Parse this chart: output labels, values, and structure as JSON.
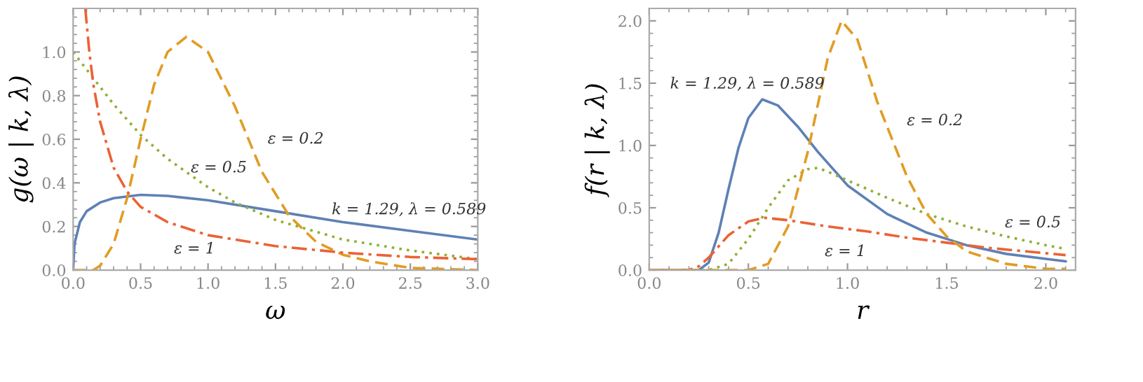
{
  "chart_data": [
    {
      "type": "line",
      "xlabel": "ω",
      "ylabel": "g(ω | k, λ)",
      "xlim": [
        0,
        3.0
      ],
      "ylim": [
        0,
        1.2
      ],
      "xticks": [
        {
          "value": 0,
          "label": "0.0"
        },
        0.5,
        {
          "value": 1,
          "label": "1.0"
        },
        1.5,
        {
          "value": 2,
          "label": "2.0"
        },
        2.5,
        {
          "value": 3,
          "label": "3.0"
        }
      ],
      "yticks": [
        {
          "value": 0,
          "label": "0.0"
        },
        0.2,
        0.4,
        0.6,
        0.8,
        {
          "value": 1,
          "label": "1.0"
        }
      ],
      "grid": false,
      "marker": "none",
      "series": [
        {
          "color": "#5e81b5",
          "line_style": "solid",
          "x": [
            0,
            0.01,
            0.05,
            0.1,
            0.2,
            0.3,
            0.5,
            0.7,
            1.0,
            1.5,
            2.0,
            2.5,
            3.0
          ],
          "values": [
            0,
            0.12,
            0.22,
            0.27,
            0.31,
            0.33,
            0.345,
            0.34,
            0.32,
            0.27,
            0.22,
            0.18,
            0.14
          ]
        },
        {
          "color": "#e19c24",
          "line_style": "dashed",
          "x": [
            0,
            0.15,
            0.2,
            0.3,
            0.4,
            0.5,
            0.6,
            0.7,
            0.84,
            1.0,
            1.2,
            1.4,
            1.6,
            1.8,
            2.0,
            2.2,
            2.5,
            3.0
          ],
          "values": [
            0,
            0,
            0.02,
            0.12,
            0.33,
            0.6,
            0.85,
            1.0,
            1.07,
            1.0,
            0.75,
            0.45,
            0.25,
            0.13,
            0.07,
            0.04,
            0.01,
            0
          ]
        },
        {
          "color": "#8fb032",
          "line_style": "dotted",
          "x": [
            0,
            0.1,
            0.2,
            0.3,
            0.5,
            0.7,
            1.0,
            1.2,
            1.5,
            2.0,
            2.5,
            3.0
          ],
          "values": [
            1.0,
            0.92,
            0.84,
            0.76,
            0.62,
            0.51,
            0.38,
            0.31,
            0.23,
            0.14,
            0.09,
            0.05
          ]
        },
        {
          "color": "#eb6235",
          "line_style": "dashdot",
          "x": [
            0.09,
            0.12,
            0.15,
            0.2,
            0.3,
            0.4,
            0.5,
            0.7,
            1.0,
            1.5,
            2.0,
            2.5,
            3.0
          ],
          "values": [
            1.2,
            1.0,
            0.85,
            0.68,
            0.47,
            0.36,
            0.29,
            0.22,
            0.16,
            0.11,
            0.08,
            0.06,
            0.05
          ]
        }
      ],
      "annotations": [
        "ε = 0.2",
        "ε = 0.5",
        "k = 1.29, λ = 0.589",
        "ε = 1"
      ]
    },
    {
      "type": "line",
      "xlabel": "r",
      "ylabel": "f(r | k, λ)",
      "xlim": [
        0,
        2.15
      ],
      "ylim": [
        0,
        2.1
      ],
      "xticks": [
        {
          "value": 0,
          "label": "0.0"
        },
        0.5,
        {
          "value": 1,
          "label": "1.0"
        },
        1.5,
        {
          "value": 2,
          "label": "2.0"
        }
      ],
      "yticks": [
        {
          "value": 0,
          "label": "0.0"
        },
        0.5,
        {
          "value": 1,
          "label": "1.0"
        },
        1.5,
        {
          "value": 2,
          "label": "2.0"
        }
      ],
      "grid": false,
      "marker": "none",
      "series": [
        {
          "color": "#5e81b5",
          "line_style": "solid",
          "x": [
            0,
            0.25,
            0.3,
            0.35,
            0.4,
            0.45,
            0.5,
            0.57,
            0.65,
            0.75,
            0.85,
            1.0,
            1.2,
            1.4,
            1.6,
            1.8,
            2.0,
            2.1
          ],
          "values": [
            0,
            0,
            0.06,
            0.3,
            0.65,
            0.98,
            1.22,
            1.37,
            1.32,
            1.15,
            0.95,
            0.68,
            0.45,
            0.3,
            0.2,
            0.13,
            0.09,
            0.07
          ]
        },
        {
          "color": "#eb6235",
          "line_style": "dashdot",
          "x": [
            0,
            0.2,
            0.25,
            0.3,
            0.4,
            0.5,
            0.58,
            0.7,
            0.9,
            1.1,
            1.3,
            1.5,
            1.7,
            1.9,
            2.1
          ],
          "values": [
            0,
            0,
            0.03,
            0.1,
            0.28,
            0.39,
            0.42,
            0.4,
            0.35,
            0.31,
            0.26,
            0.22,
            0.18,
            0.15,
            0.12
          ]
        },
        {
          "color": "#8fb032",
          "line_style": "dotted",
          "x": [
            0,
            0.3,
            0.4,
            0.5,
            0.6,
            0.7,
            0.8,
            0.85,
            0.9,
            1.0,
            1.2,
            1.4,
            1.6,
            1.8,
            2.0,
            2.1
          ],
          "values": [
            0,
            0,
            0.05,
            0.25,
            0.5,
            0.72,
            0.81,
            0.82,
            0.79,
            0.72,
            0.58,
            0.45,
            0.35,
            0.27,
            0.2,
            0.17
          ]
        },
        {
          "color": "#e19c24",
          "line_style": "dashed",
          "x": [
            0,
            0.5,
            0.6,
            0.7,
            0.8,
            0.9,
            0.97,
            1.05,
            1.15,
            1.3,
            1.4,
            1.5,
            1.6,
            1.8,
            2.0,
            2.1
          ],
          "values": [
            0,
            0,
            0.05,
            0.35,
            0.95,
            1.7,
            2.0,
            1.85,
            1.35,
            0.75,
            0.45,
            0.27,
            0.15,
            0.05,
            0.01,
            0.01
          ]
        }
      ],
      "annotations": [
        "k = 1.29, λ = 0.589",
        "ε = 0.2",
        "ε = 0.5",
        "ε = 1"
      ]
    }
  ]
}
